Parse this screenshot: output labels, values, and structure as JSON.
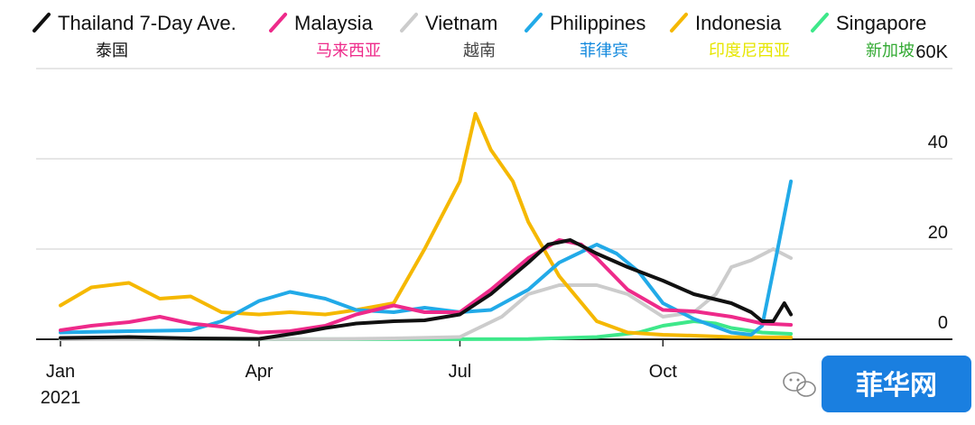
{
  "chart_data": {
    "type": "line",
    "x_ticks": [
      "Jan",
      "Apr",
      "Jul",
      "Oct"
    ],
    "x_year_label": "2021",
    "y_ticks": [
      "0",
      "20",
      "40",
      "60K"
    ],
    "ylim": [
      0,
      60000
    ],
    "xlim": [
      "2021-01-01",
      "2021-11-30"
    ],
    "grid": "horizontal",
    "legend_position": "top",
    "series": [
      {
        "name": "Thailand 7-Day Ave.",
        "name_zh": "泰国",
        "color": "#111111",
        "zh_color": "#111111",
        "x": [
          "2021-01-01",
          "2021-02-01",
          "2021-03-01",
          "2021-04-01",
          "2021-04-20",
          "2021-05-01",
          "2021-05-15",
          "2021-06-01",
          "2021-06-15",
          "2021-07-01",
          "2021-07-15",
          "2021-08-01",
          "2021-08-10",
          "2021-08-20",
          "2021-09-01",
          "2021-09-15",
          "2021-10-01",
          "2021-10-15",
          "2021-11-01",
          "2021-11-10",
          "2021-11-15",
          "2021-11-20",
          "2021-11-25",
          "2021-11-28"
        ],
        "values": [
          300,
          500,
          200,
          100,
          1500,
          2500,
          3500,
          4000,
          4200,
          5500,
          10000,
          17000,
          21000,
          22000,
          19000,
          16000,
          13000,
          10000,
          8000,
          6000,
          4000,
          4000,
          8000,
          5500
        ]
      },
      {
        "name": "Malaysia",
        "name_zh": "马来西亚",
        "color": "#ee2a8a",
        "zh_color": "#ee2a8a",
        "x": [
          "2021-01-01",
          "2021-01-15",
          "2021-02-01",
          "2021-02-15",
          "2021-03-01",
          "2021-03-15",
          "2021-04-01",
          "2021-04-15",
          "2021-05-01",
          "2021-05-15",
          "2021-06-01",
          "2021-06-15",
          "2021-07-01",
          "2021-07-15",
          "2021-08-01",
          "2021-08-15",
          "2021-08-25",
          "2021-09-01",
          "2021-09-15",
          "2021-10-01",
          "2021-10-15",
          "2021-11-01",
          "2021-11-15",
          "2021-11-28"
        ],
        "values": [
          2000,
          3000,
          3800,
          5000,
          3500,
          2800,
          1500,
          1800,
          3000,
          5500,
          7500,
          6000,
          6000,
          11000,
          18000,
          22000,
          21000,
          18000,
          11000,
          6500,
          6200,
          5000,
          3500,
          3200
        ]
      },
      {
        "name": "Vietnam",
        "name_zh": "越南",
        "color": "#cccccc",
        "zh_color": "#444444",
        "x": [
          "2021-01-01",
          "2021-05-01",
          "2021-06-01",
          "2021-07-01",
          "2021-07-20",
          "2021-08-01",
          "2021-08-15",
          "2021-09-01",
          "2021-09-15",
          "2021-10-01",
          "2021-10-15",
          "2021-10-25",
          "2021-11-01",
          "2021-11-10",
          "2021-11-20",
          "2021-11-28"
        ],
        "values": [
          0,
          50,
          200,
          500,
          5000,
          10000,
          12000,
          12000,
          10000,
          5000,
          6000,
          10000,
          16000,
          17500,
          20000,
          18000
        ]
      },
      {
        "name": "Philippines",
        "name_zh": "菲律宾",
        "color": "#22aae8",
        "zh_color": "#1188dd",
        "x": [
          "2021-01-01",
          "2021-02-01",
          "2021-03-01",
          "2021-03-15",
          "2021-04-01",
          "2021-04-15",
          "2021-05-01",
          "2021-05-15",
          "2021-06-01",
          "2021-06-15",
          "2021-07-01",
          "2021-07-15",
          "2021-08-01",
          "2021-08-15",
          "2021-09-01",
          "2021-09-10",
          "2021-09-20",
          "2021-10-01",
          "2021-10-15",
          "2021-11-01",
          "2021-11-10",
          "2021-11-15",
          "2021-11-22",
          "2021-11-28"
        ],
        "values": [
          1500,
          1800,
          2000,
          4000,
          8500,
          10500,
          9000,
          6500,
          6000,
          7000,
          6000,
          6500,
          11000,
          17000,
          21000,
          19000,
          15000,
          8000,
          4500,
          1500,
          1000,
          3000,
          20000,
          35000
        ]
      },
      {
        "name": "Indonesia",
        "name_zh": "印度尼西亚",
        "color": "#f5b800",
        "zh_color": "#e6e600",
        "x": [
          "2021-01-01",
          "2021-01-15",
          "2021-02-01",
          "2021-02-15",
          "2021-03-01",
          "2021-03-15",
          "2021-04-01",
          "2021-04-15",
          "2021-05-01",
          "2021-05-15",
          "2021-06-01",
          "2021-06-15",
          "2021-07-01",
          "2021-07-08",
          "2021-07-15",
          "2021-07-25",
          "2021-08-01",
          "2021-08-15",
          "2021-09-01",
          "2021-09-15",
          "2021-10-01",
          "2021-10-15",
          "2021-11-01",
          "2021-11-28"
        ],
        "values": [
          7500,
          11500,
          12500,
          9000,
          9500,
          6000,
          5500,
          6000,
          5500,
          6500,
          8000,
          20000,
          35000,
          50000,
          42000,
          35000,
          26000,
          14000,
          4000,
          1500,
          1000,
          800,
          500,
          400
        ]
      },
      {
        "name": "Singapore",
        "name_zh": "新加坡",
        "color": "#3ee88a",
        "zh_color": "#33aa33",
        "x": [
          "2021-01-01",
          "2021-08-01",
          "2021-09-01",
          "2021-09-20",
          "2021-10-01",
          "2021-10-15",
          "2021-10-25",
          "2021-11-01",
          "2021-11-15",
          "2021-11-28"
        ],
        "values": [
          0,
          50,
          500,
          1500,
          3000,
          4000,
          3500,
          2500,
          1500,
          1200
        ]
      }
    ]
  },
  "watermark": {
    "text": "菲华网"
  }
}
